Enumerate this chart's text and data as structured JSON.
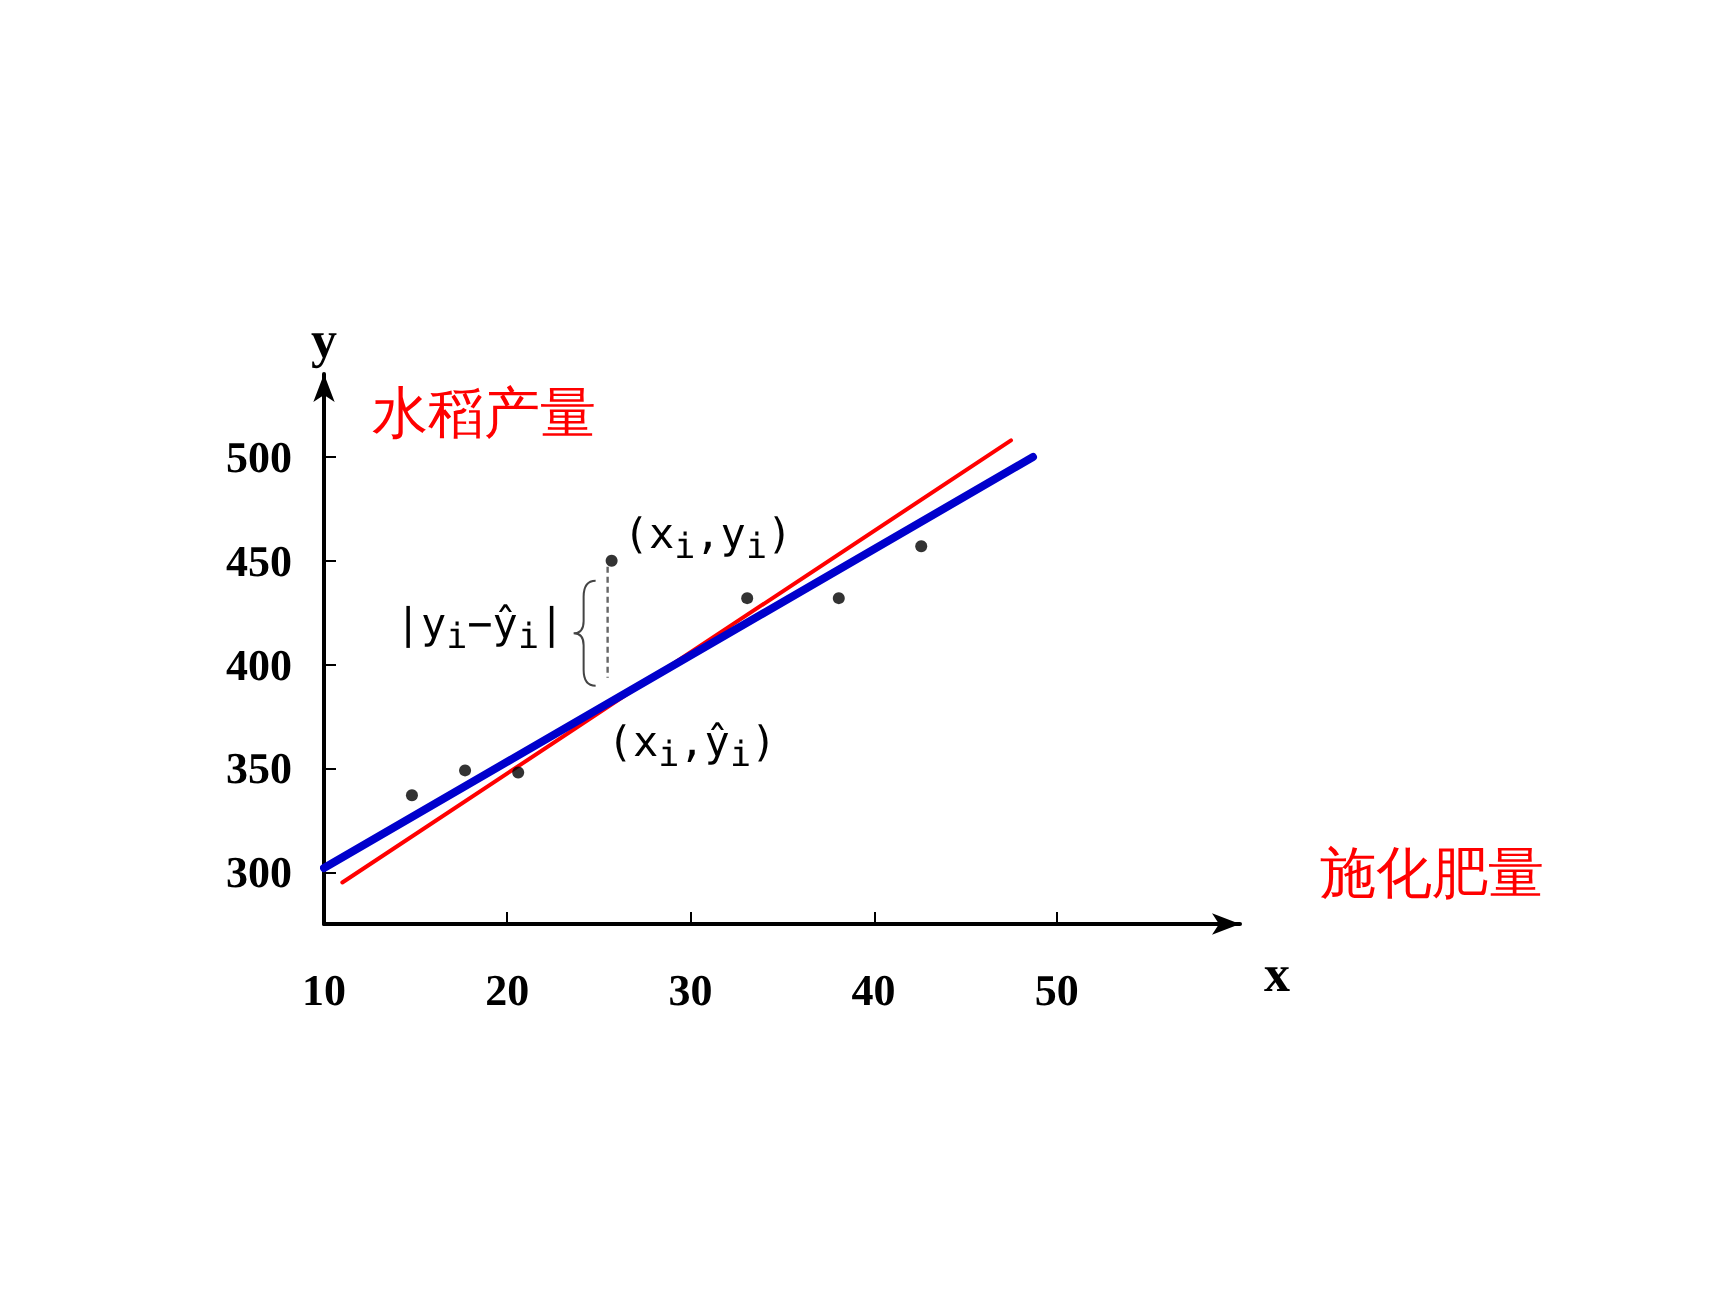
{
  "chart_data": {
    "type": "scatter",
    "xlabel": "x",
    "ylabel": "y",
    "xlim": [
      10,
      60
    ],
    "xticks": [
      10,
      20,
      30,
      40,
      50
    ],
    "ylim": [
      275,
      540
    ],
    "yticks": [
      300,
      350,
      400,
      450,
      500
    ],
    "grid": false,
    "series": [
      {
        "color": "#000000",
        "marker": "circle",
        "x": [
          14.8,
          17.7,
          20.6,
          25.7,
          33.1,
          38.1,
          42.6
        ],
        "values": [
          337,
          349,
          348,
          450,
          432,
          432,
          457
        ]
      },
      {
        "type": "line",
        "color": "#ff0000",
        "marker": "none",
        "x": [
          11,
          47.5
        ],
        "values": [
          295,
          508
        ]
      },
      {
        "type": "line",
        "color": "#0000cc",
        "marker": "none",
        "x": [
          10,
          48.7
        ],
        "values": [
          302,
          500
        ]
      }
    ],
    "annotations": [
      "水稻产量",
      "施化肥量",
      {
        "text": "(x$_{i}$,y$_{i}$)",
        "x": 25.7,
        "y": 450
      },
      {
        "text": "(x$_{i}$,ŷ$_{i}$)",
        "x": 25.7,
        "y": 384
      },
      "|y$_{i}$−ŷ$_{i}$|"
    ]
  }
}
